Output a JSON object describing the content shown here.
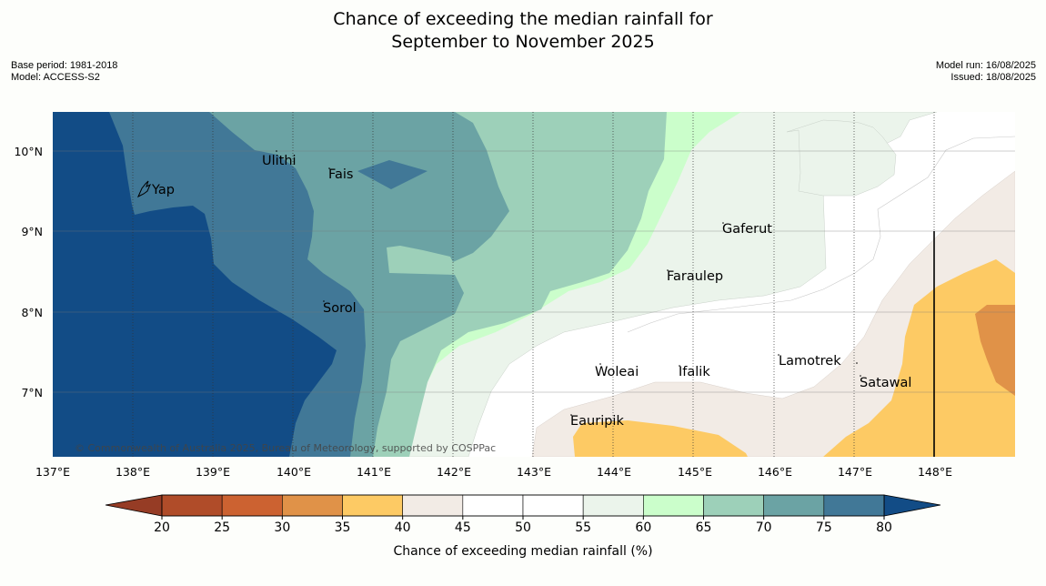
{
  "header": {
    "title_line1": "Chance of exceeding the median rainfall for",
    "title_line2": "September to November 2025",
    "base_period": "Base period: 1981-2018",
    "model": "Model: ACCESS-S2",
    "model_run": "Model run: 16/08/2025",
    "issued": "Issued: 18/08/2025"
  },
  "map": {
    "x_ticks": [
      "137°E",
      "138°E",
      "139°E",
      "140°E",
      "141°E",
      "142°E",
      "143°E",
      "144°E",
      "145°E",
      "146°E",
      "147°E",
      "148°E"
    ],
    "y_ticks": [
      "10°N",
      "9°N",
      "8°N",
      "7°N"
    ],
    "places": [
      "Yap",
      "Ulithi",
      "Fais",
      "Gaferut",
      "Faraulep",
      "Sorol",
      "Woleai",
      "Ifalik",
      "Lamotrek",
      "Satawal",
      "Eauripik"
    ],
    "copyright": "© Commonwealth of Australia 2025, Bureau of Meteorology, supported by COSPPac"
  },
  "colorbar": {
    "ticks": [
      "20",
      "25",
      "30",
      "35",
      "40",
      "45",
      "50",
      "55",
      "60",
      "65",
      "70",
      "75",
      "80"
    ],
    "colors": [
      "#b04c29",
      "#cc6231",
      "#e09248",
      "#fdca64",
      "#f2ebe5",
      "#ffffff",
      "#ffffff",
      "#ebf4eb",
      "#cbfecb",
      "#9dd0b9",
      "#6ba3a4",
      "#417897"
    ],
    "under_color": "#963c25",
    "over_color": "#124c86",
    "label": "Chance of exceeding median rainfall (%)"
  }
}
